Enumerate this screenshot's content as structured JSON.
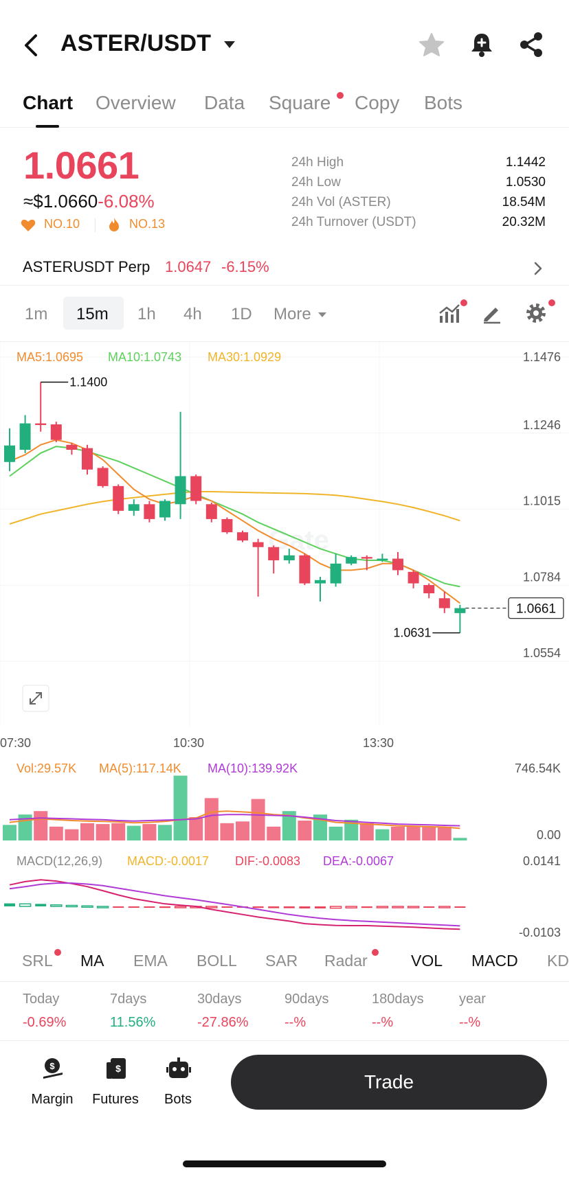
{
  "header": {
    "pair": "ASTER/USDT",
    "icons": {
      "back": "back-icon",
      "star": "star-icon",
      "bell": "bell-plus-icon",
      "share": "share-icon"
    }
  },
  "tabs": [
    {
      "label": "Chart",
      "active": true
    },
    {
      "label": "Overview"
    },
    {
      "label": "Data"
    },
    {
      "label": "Square",
      "dot": true
    },
    {
      "label": "Copy"
    },
    {
      "label": "Bots"
    }
  ],
  "price": {
    "last": "1.0661",
    "usd": "≈$1.0660",
    "change": "-6.08%",
    "rank1": "NO.10",
    "rank2": "NO.13"
  },
  "stats": [
    {
      "label": "24h High",
      "value": "1.1442"
    },
    {
      "label": "24h Low",
      "value": "1.0530"
    },
    {
      "label": "24h Vol (ASTER)",
      "value": "18.54M"
    },
    {
      "label": "24h Turnover (USDT)",
      "value": "20.32M"
    }
  ],
  "perp": {
    "name": "ASTERUSDT Perp",
    "price": "1.0647",
    "change": "-6.15%"
  },
  "intervals": {
    "items": [
      "1m",
      "15m",
      "1h",
      "4h",
      "1D"
    ],
    "active": "15m",
    "more_label": "More"
  },
  "colors": {
    "up": "#21b07d",
    "down": "#e8455c",
    "ma5": "#f08c2e",
    "ma10": "#5bd15b",
    "ma30": "#f0b429",
    "vol_ma5": "#f08c2e",
    "vol_ma10": "#b03ad6"
  },
  "chart": {
    "ma_legend": {
      "ma5": "MA5:1.0695",
      "ma10": "MA10:1.0743",
      "ma30": "MA30:1.0929"
    },
    "y_ticks": [
      "1.1476",
      "1.1246",
      "1.1015",
      "1.0784",
      "1.0554"
    ],
    "x_ticks": [
      "07:30",
      "10:30",
      "13:30"
    ],
    "high_marker": "1.1400",
    "low_marker": "1.0631",
    "current_price_tag": "1.0661",
    "watermark": "Gate"
  },
  "chart_data": {
    "type": "candlestick",
    "y_range": [
      1.0554,
      1.1476
    ],
    "candles": [
      {
        "o": 1.1158,
        "c": 1.1208,
        "h": 1.126,
        "l": 1.113
      },
      {
        "o": 1.1195,
        "c": 1.1275,
        "h": 1.13,
        "l": 1.1185
      },
      {
        "o": 1.1275,
        "c": 1.127,
        "h": 1.14,
        "l": 1.125
      },
      {
        "o": 1.1272,
        "c": 1.1225,
        "h": 1.128,
        "l": 1.1218
      },
      {
        "o": 1.121,
        "c": 1.1195,
        "h": 1.1215,
        "l": 1.118
      },
      {
        "o": 1.12,
        "c": 1.1135,
        "h": 1.121,
        "l": 1.112
      },
      {
        "o": 1.114,
        "c": 1.1085,
        "h": 1.1145,
        "l": 1.108
      },
      {
        "o": 1.1085,
        "c": 1.101,
        "h": 1.109,
        "l": 1.1
      },
      {
        "o": 1.101,
        "c": 1.103,
        "h": 1.1045,
        "l": 1.0995
      },
      {
        "o": 1.103,
        "c": 1.0985,
        "h": 1.104,
        "l": 1.0975
      },
      {
        "o": 1.099,
        "c": 1.104,
        "h": 1.1045,
        "l": 1.098
      },
      {
        "o": 1.103,
        "c": 1.1115,
        "h": 1.131,
        "l": 1.0985
      },
      {
        "o": 1.1115,
        "c": 1.104,
        "h": 1.112,
        "l": 1.103
      },
      {
        "o": 1.103,
        "c": 1.0985,
        "h": 1.1035,
        "l": 1.0975
      },
      {
        "o": 1.0985,
        "c": 1.0945,
        "h": 1.099,
        "l": 1.094
      },
      {
        "o": 1.0945,
        "c": 1.092,
        "h": 1.095,
        "l": 1.0915
      },
      {
        "o": 1.0915,
        "c": 1.09,
        "h": 1.0925,
        "l": 1.075
      },
      {
        "o": 1.09,
        "c": 1.086,
        "h": 1.0905,
        "l": 1.082
      },
      {
        "o": 1.086,
        "c": 1.0875,
        "h": 1.0895,
        "l": 1.085
      },
      {
        "o": 1.0875,
        "c": 1.079,
        "h": 1.088,
        "l": 1.0785
      },
      {
        "o": 1.079,
        "c": 1.08,
        "h": 1.081,
        "l": 1.0735
      },
      {
        "o": 1.079,
        "c": 1.085,
        "h": 1.088,
        "l": 1.078
      },
      {
        "o": 1.085,
        "c": 1.087,
        "h": 1.0875,
        "l": 1.0845
      },
      {
        "o": 1.087,
        "c": 1.0865,
        "h": 1.0875,
        "l": 1.083
      },
      {
        "o": 1.086,
        "c": 1.0865,
        "h": 1.088,
        "l": 1.0855
      },
      {
        "o": 1.0865,
        "c": 1.083,
        "h": 1.0885,
        "l": 1.0815
      },
      {
        "o": 1.0825,
        "c": 1.079,
        "h": 1.083,
        "l": 1.0775
      },
      {
        "o": 1.0785,
        "c": 1.076,
        "h": 1.079,
        "l": 1.0745
      },
      {
        "o": 1.0745,
        "c": 1.0715,
        "h": 1.0765,
        "l": 1.07
      },
      {
        "o": 1.07,
        "c": 1.0715,
        "h": 1.0725,
        "l": 1.064
      }
    ],
    "ma5": [
      1.116,
      1.118,
      1.121,
      1.1225,
      1.1215,
      1.1195,
      1.1165,
      1.112,
      1.1075,
      1.1045,
      1.103,
      1.104,
      1.1055,
      1.104,
      1.101,
      1.098,
      1.095,
      1.0925,
      1.0905,
      1.088,
      1.085,
      1.083,
      1.083,
      1.0835,
      1.085,
      1.085,
      1.083,
      1.08,
      1.0765,
      1.073
    ],
    "ma10": [
      1.1115,
      1.115,
      1.1185,
      1.1205,
      1.12,
      1.119,
      1.1175,
      1.116,
      1.114,
      1.112,
      1.11,
      1.108,
      1.106,
      1.104,
      1.102,
      1.1,
      1.0975,
      1.0955,
      1.0935,
      1.0915,
      1.0895,
      1.088,
      1.0865,
      1.086,
      1.086,
      1.085,
      1.083,
      1.081,
      1.079,
      1.078
    ],
    "ma30": [
      1.097,
      1.0985,
      1.1,
      1.101,
      1.102,
      1.103,
      1.1038,
      1.1045,
      1.105,
      1.1055,
      1.106,
      1.1065,
      1.1068,
      1.1068,
      1.1067,
      1.1066,
      1.1065,
      1.1064,
      1.1063,
      1.1062,
      1.106,
      1.1057,
      1.1052,
      1.1045,
      1.1038,
      1.103,
      1.102,
      1.1008,
      1.0995,
      1.098
    ],
    "volume": {
      "legend": {
        "vol": "Vol:29.57K",
        "ma5": "MA(5):117.14K",
        "ma10": "MA(10):139.92K"
      },
      "y_ticks": [
        "746.54K",
        "0.00"
      ],
      "max": 746.54,
      "values": [
        180,
        300,
        340,
        160,
        130,
        200,
        190,
        200,
        170,
        190,
        180,
        750,
        270,
        490,
        200,
        220,
        480,
        160,
        340,
        230,
        300,
        160,
        240,
        200,
        130,
        160,
        160,
        160,
        160,
        30
      ],
      "ma5_line": [
        210,
        230,
        250,
        240,
        230,
        225,
        220,
        215,
        205,
        210,
        220,
        240,
        260,
        330,
        340,
        330,
        320,
        300,
        290,
        260,
        240,
        210,
        200,
        190,
        180,
        170,
        165,
        160,
        155,
        140
      ],
      "ma10_line": [
        240,
        250,
        260,
        255,
        250,
        245,
        240,
        230,
        225,
        230,
        235,
        240,
        250,
        290,
        300,
        300,
        295,
        290,
        285,
        270,
        250,
        230,
        220,
        210,
        200,
        190,
        185,
        180,
        175,
        170
      ]
    },
    "macd": {
      "legend": {
        "name": "MACD(12,26,9)",
        "macd": "MACD:-0.0017",
        "dif": "DIF:-0.0083",
        "dea": "DEA:-0.0067"
      },
      "y_ticks": [
        "0.0141",
        "-0.0103"
      ],
      "range": [
        -0.0103,
        0.0141
      ],
      "hist": [
        0.0012,
        0.001,
        0.001,
        0.0006,
        0.0004,
        0.0002,
        0.0,
        -0.0002,
        -0.0004,
        -0.0005,
        -0.0006,
        -0.0005,
        -0.0004,
        -0.0003,
        -0.0004,
        -0.0005,
        -0.0006,
        -0.0007,
        -0.0007,
        -0.0008,
        -0.0008,
        -0.0007,
        -0.0006,
        -0.0006,
        -0.0005,
        -0.0004,
        -0.0003,
        -0.0003,
        -0.0002,
        -0.0002
      ],
      "dif": [
        0.0085,
        0.0098,
        0.0105,
        0.01,
        0.009,
        0.0078,
        0.0062,
        0.0045,
        0.003,
        0.002,
        0.001,
        0.0005,
        0.0,
        -0.0012,
        -0.0022,
        -0.0032,
        -0.0042,
        -0.005,
        -0.0058,
        -0.0068,
        -0.0072,
        -0.0075,
        -0.0076,
        -0.0076,
        -0.0078,
        -0.008,
        -0.0082,
        -0.0085,
        -0.0088,
        -0.009
      ],
      "dea": [
        0.007,
        0.0078,
        0.0087,
        0.0092,
        0.0092,
        0.0088,
        0.0082,
        0.0072,
        0.0062,
        0.0052,
        0.0042,
        0.0034,
        0.0026,
        0.0017,
        0.0008,
        -0.0002,
        -0.0012,
        -0.0022,
        -0.0032,
        -0.004,
        -0.0047,
        -0.0052,
        -0.0056,
        -0.0059,
        -0.0062,
        -0.0065,
        -0.0068,
        -0.0071,
        -0.0074,
        -0.0077
      ]
    }
  },
  "indicators": [
    {
      "label": "SRL",
      "dot": true
    },
    {
      "label": "MA",
      "active": true
    },
    {
      "label": "EMA"
    },
    {
      "label": "BOLL"
    },
    {
      "label": "SAR"
    },
    {
      "label": "Radar",
      "dot": true
    },
    {
      "label": "VOL",
      "active": true
    },
    {
      "label": "MACD",
      "active": true
    },
    {
      "label": "KD"
    }
  ],
  "performance": [
    {
      "label": "Today",
      "value": "-0.69%",
      "tone": "red"
    },
    {
      "label": "7days",
      "value": "11.56%",
      "tone": "green"
    },
    {
      "label": "30days",
      "value": "-27.86%",
      "tone": "red"
    },
    {
      "label": "90days",
      "value": "--%",
      "tone": "red"
    },
    {
      "label": "180days",
      "value": "--%",
      "tone": "red"
    },
    {
      "label": "year",
      "value": "--%",
      "tone": "red"
    }
  ],
  "bottom_nav": {
    "margin_label": "Margin",
    "futures_label": "Futures",
    "bots_label": "Bots",
    "trade_label": "Trade"
  }
}
